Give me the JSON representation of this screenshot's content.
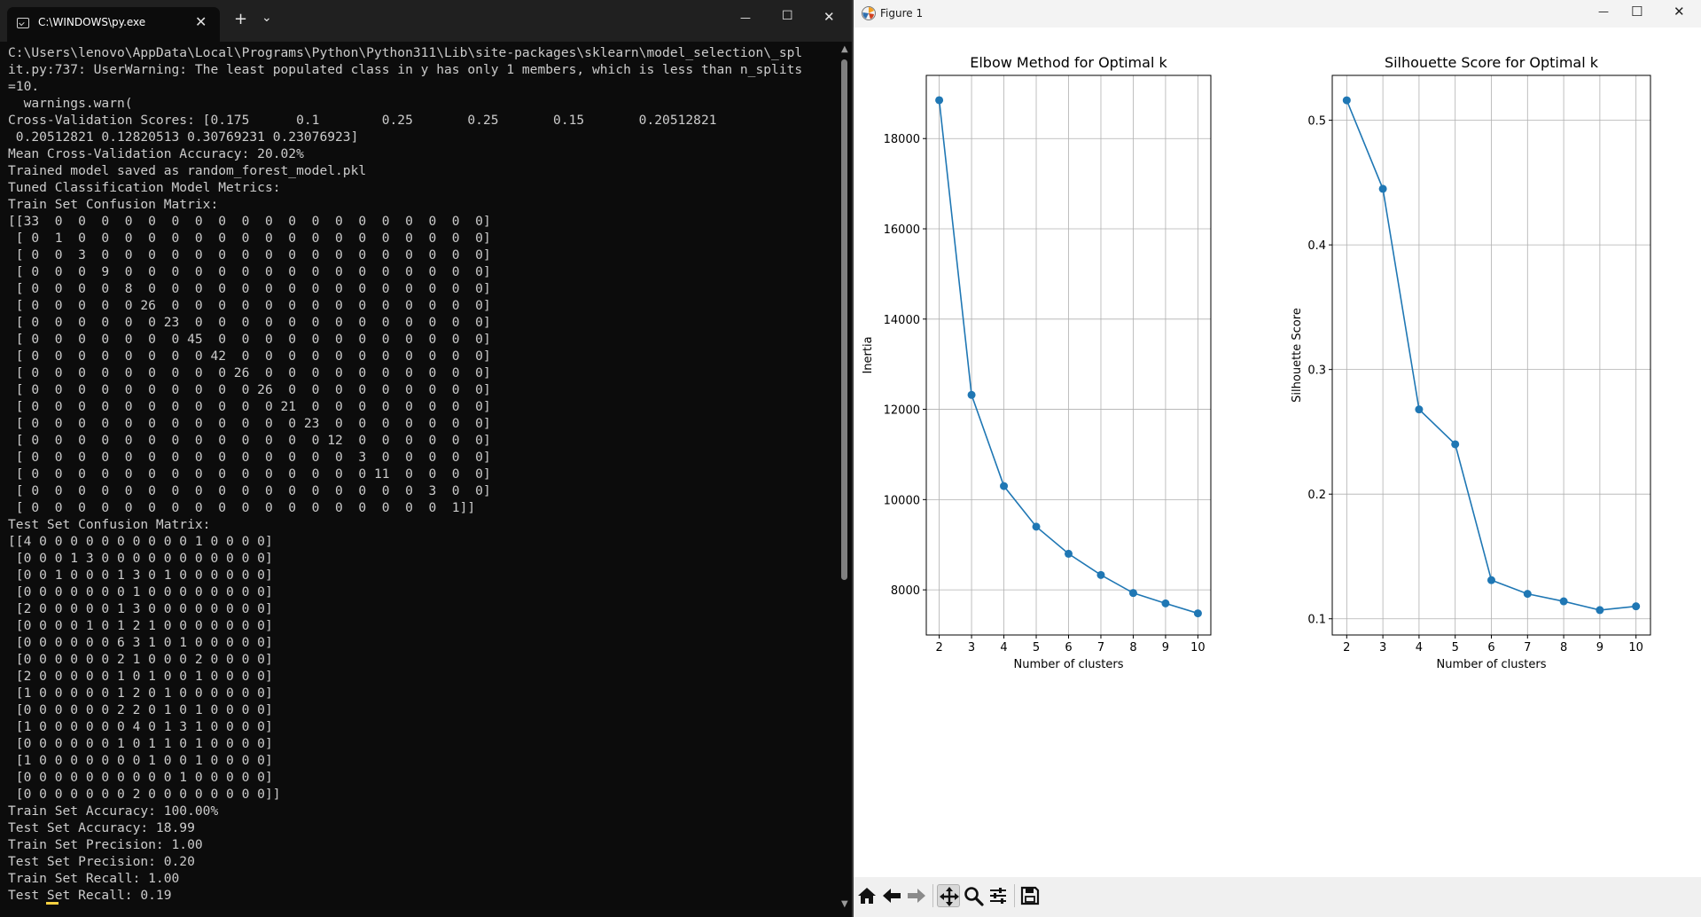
{
  "terminal": {
    "tab_title": "C:\\WINDOWS\\py.exe",
    "tab_close": "✕",
    "new_tab": "+",
    "dropdown": "⌄",
    "minimize": "—",
    "maximize": "☐",
    "close": "✕",
    "lines": [
      "C:\\Users\\lenovo\\AppData\\Local\\Programs\\Python\\Python311\\Lib\\site-packages\\sklearn\\model_selection\\_spl",
      "it.py:737: UserWarning: The least populated class in y has only 1 members, which is less than n_splits",
      "=10.",
      "  warnings.warn(",
      "Cross-Validation Scores: [0.175      0.1        0.25       0.25       0.15       0.20512821",
      " 0.20512821 0.12820513 0.30769231 0.23076923]",
      "Mean Cross-Validation Accuracy: 20.02%",
      "Trained model saved as random_forest_model.pkl",
      "Tuned Classification Model Metrics:",
      "Train Set Confusion Matrix:",
      "[[33  0  0  0  0  0  0  0  0  0  0  0  0  0  0  0  0  0  0  0]",
      " [ 0  1  0  0  0  0  0  0  0  0  0  0  0  0  0  0  0  0  0  0]",
      " [ 0  0  3  0  0  0  0  0  0  0  0  0  0  0  0  0  0  0  0  0]",
      " [ 0  0  0  9  0  0  0  0  0  0  0  0  0  0  0  0  0  0  0  0]",
      " [ 0  0  0  0  8  0  0  0  0  0  0  0  0  0  0  0  0  0  0  0]",
      " [ 0  0  0  0  0 26  0  0  0  0  0  0  0  0  0  0  0  0  0  0]",
      " [ 0  0  0  0  0  0 23  0  0  0  0  0  0  0  0  0  0  0  0  0]",
      " [ 0  0  0  0  0  0  0 45  0  0  0  0  0  0  0  0  0  0  0  0]",
      " [ 0  0  0  0  0  0  0  0 42  0  0  0  0  0  0  0  0  0  0  0]",
      " [ 0  0  0  0  0  0  0  0  0 26  0  0  0  0  0  0  0  0  0  0]",
      " [ 0  0  0  0  0  0  0  0  0  0 26  0  0  0  0  0  0  0  0  0]",
      " [ 0  0  0  0  0  0  0  0  0  0  0 21  0  0  0  0  0  0  0  0]",
      " [ 0  0  0  0  0  0  0  0  0  0  0  0 23  0  0  0  0  0  0  0]",
      " [ 0  0  0  0  0  0  0  0  0  0  0  0  0 12  0  0  0  0  0  0]",
      " [ 0  0  0  0  0  0  0  0  0  0  0  0  0  0  3  0  0  0  0  0]",
      " [ 0  0  0  0  0  0  0  0  0  0  0  0  0  0  0 11  0  0  0  0]",
      " [ 0  0  0  0  0  0  0  0  0  0  0  0  0  0  0  0  0  3  0  0]",
      " [ 0  0  0  0  0  0  0  0  0  0  0  0  0  0  0  0  0  0  1]]",
      "Test Set Confusion Matrix:",
      "[[4 0 0 0 0 0 0 0 0 0 0 1 0 0 0 0]",
      " [0 0 0 1 3 0 0 0 0 0 0 0 0 0 0 0]",
      " [0 0 1 0 0 0 1 3 0 1 0 0 0 0 0 0]",
      " [0 0 0 0 0 0 0 1 0 0 0 0 0 0 0 0]",
      " [2 0 0 0 0 0 1 3 0 0 0 0 0 0 0 0]",
      " [0 0 0 0 1 0 1 2 1 0 0 0 0 0 0 0]",
      " [0 0 0 0 0 0 6 3 1 0 1 0 0 0 0 0]",
      " [0 0 0 0 0 0 2 1 0 0 0 2 0 0 0 0]",
      " [2 0 0 0 0 0 1 0 1 0 0 1 0 0 0 0]",
      " [1 0 0 0 0 0 1 2 0 1 0 0 0 0 0 0]",
      " [0 0 0 0 0 0 2 2 0 1 0 1 0 0 0 0]",
      " [1 0 0 0 0 0 0 4 0 1 3 1 0 0 0 0]",
      " [0 0 0 0 0 0 1 0 1 1 0 1 0 0 0 0]",
      " [1 0 0 0 0 0 0 0 1 0 0 1 0 0 0 0]",
      " [0 0 0 0 0 0 0 0 0 0 1 0 0 0 0 0]",
      " [0 0 0 0 0 0 0 2 0 0 0 0 0 0 0 0]]",
      "Train Set Accuracy: 100.00%",
      "Test Set Accuracy: 18.99",
      "Train Set Precision: 1.00",
      "Test Set Precision: 0.20",
      "Train Set Recall: 1.00",
      "Test Set Recall: 0.19"
    ]
  },
  "figure": {
    "window_title": "Figure 1",
    "minimize": "—",
    "maximize": "☐",
    "close": "✕",
    "toolbar": [
      "home-icon",
      "back-icon",
      "forward-icon",
      "pan-icon",
      "zoom-icon",
      "configure-subplots-icon",
      "save-icon"
    ]
  },
  "colors": {
    "line": "#1f77b4",
    "grid": "#b0b0b0",
    "terminal_bg": "#0c0c0c",
    "terminal_fg": "#cccccc"
  },
  "chart_data": [
    {
      "type": "line",
      "title": "Elbow Method for Optimal k",
      "xlabel": "Number of clusters",
      "ylabel": "Inertia",
      "x": [
        2,
        3,
        4,
        5,
        6,
        7,
        8,
        9,
        10
      ],
      "series": [
        {
          "values": [
            18850,
            12320,
            10300,
            9400,
            8800,
            8330,
            7930,
            7700,
            7480
          ]
        }
      ],
      "xticks": [
        "2",
        "3",
        "4",
        "5",
        "6",
        "7",
        "8",
        "9",
        "10"
      ],
      "yticks": [
        "8000",
        "10000",
        "12000",
        "14000",
        "16000",
        "18000"
      ],
      "ytick_values": [
        8000,
        10000,
        12000,
        14000,
        16000,
        18000
      ],
      "xlim": [
        1.6,
        10.4
      ],
      "ylim": [
        7000,
        19400
      ],
      "grid": true,
      "marker": "circle"
    },
    {
      "type": "line",
      "title": "Silhouette Score for Optimal k",
      "xlabel": "Number of clusters",
      "ylabel": "Silhouette Score",
      "x": [
        2,
        3,
        4,
        5,
        6,
        7,
        8,
        9,
        10
      ],
      "series": [
        {
          "values": [
            0.516,
            0.445,
            0.268,
            0.24,
            0.131,
            0.12,
            0.114,
            0.107,
            0.11
          ]
        }
      ],
      "xticks": [
        "2",
        "3",
        "4",
        "5",
        "6",
        "7",
        "8",
        "9",
        "10"
      ],
      "yticks": [
        "0.1",
        "0.2",
        "0.3",
        "0.4",
        "0.5"
      ],
      "ytick_values": [
        0.1,
        0.2,
        0.3,
        0.4,
        0.5
      ],
      "xlim": [
        1.6,
        10.4
      ],
      "ylim": [
        0.087,
        0.536
      ],
      "grid": true,
      "marker": "circle"
    }
  ]
}
